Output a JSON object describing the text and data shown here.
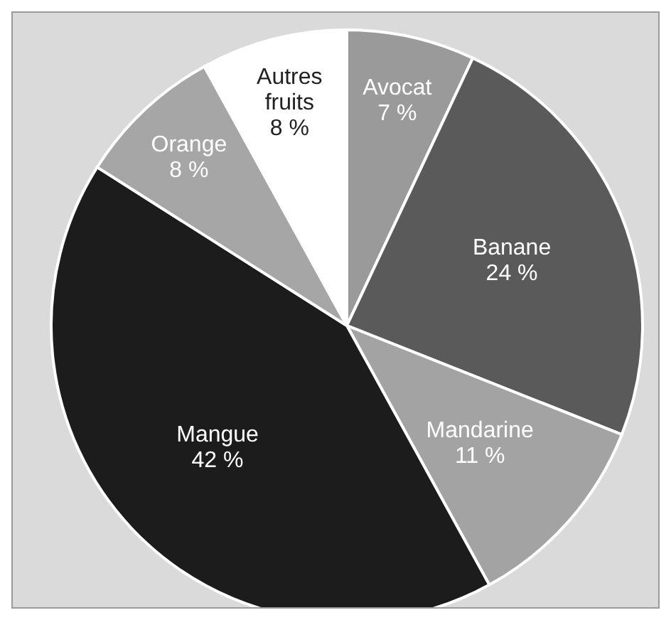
{
  "chart_data": {
    "type": "pie",
    "categories": [
      "Avocat",
      "Banane",
      "Mandarine",
      "Mangue",
      "Orange",
      "Autres fruits"
    ],
    "values": [
      7,
      24,
      11,
      42,
      8,
      8
    ],
    "colors": [
      "#9a9a9a",
      "#5a5a5a",
      "#a3a3a3",
      "#1c1c1c",
      "#a6a6a6",
      "#ffffff"
    ],
    "value_labels": [
      "7 %",
      "24 %",
      "11 %",
      "42 %",
      "8 %",
      "8 %"
    ],
    "legend": false
  }
}
